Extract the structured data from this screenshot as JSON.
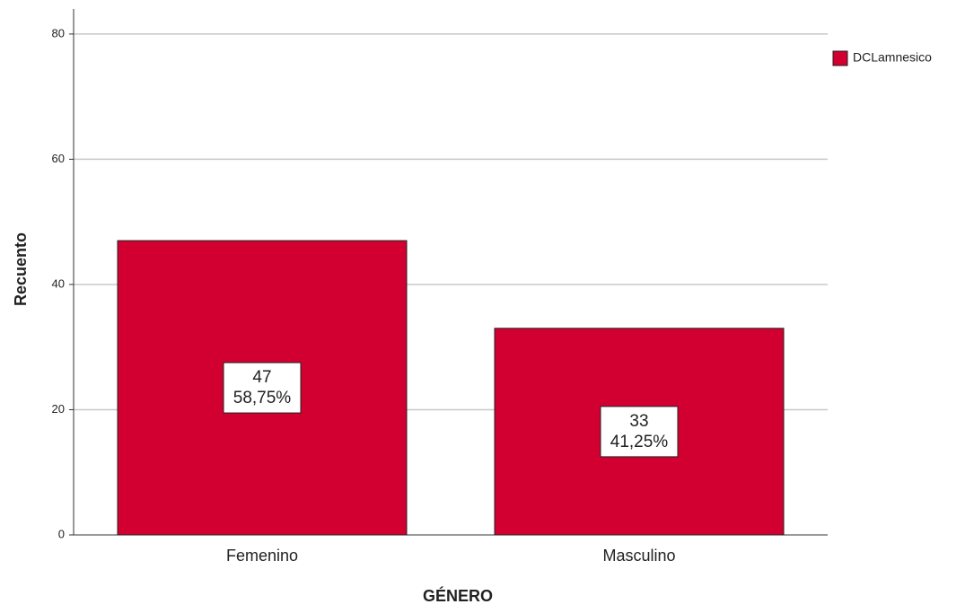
{
  "chart_data": {
    "type": "bar",
    "x_label": "GÉNERO",
    "y_label": "Recuento",
    "categories": [
      "Femenino",
      "Masculino"
    ],
    "series": [
      {
        "name": "DCLamnesico",
        "color": "#d20030",
        "values": [
          47,
          33
        ],
        "percentages": [
          {
            "value": 58.75,
            "label": "58,75%"
          },
          {
            "value": 41.25,
            "label": "41,25%"
          }
        ]
      }
    ],
    "ylim": [
      0,
      84
    ],
    "yticks": [
      0,
      20,
      40,
      60,
      80
    ],
    "grid": true,
    "legend": "right"
  }
}
